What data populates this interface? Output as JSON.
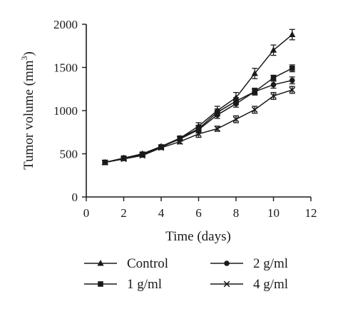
{
  "chart_data": {
    "type": "line",
    "xlabel": "Time (days)",
    "ylabel": {
      "prefix": "Tumor volume (mm",
      "sup": "3",
      "suffix": ")"
    },
    "xlim": [
      0,
      12
    ],
    "ylim": [
      0,
      2000
    ],
    "xticks": [
      0,
      2,
      4,
      6,
      8,
      10,
      12
    ],
    "yticks": [
      0,
      500,
      1000,
      1500,
      2000
    ],
    "grid": false,
    "legend_position": "bottom",
    "x": [
      1,
      2,
      3,
      4,
      5,
      6,
      7,
      8,
      9,
      10,
      11
    ],
    "series": [
      {
        "name": "Control",
        "marker": "triangle",
        "values": [
          400,
          450,
          500,
          585,
          680,
          820,
          1000,
          1150,
          1430,
          1700,
          1880
        ],
        "errors": [
          20,
          20,
          20,
          20,
          25,
          40,
          50,
          60,
          60,
          60,
          60
        ]
      },
      {
        "name": "2 g/ml",
        "marker": "circle",
        "values": [
          400,
          450,
          490,
          580,
          670,
          780,
          950,
          1080,
          1220,
          1300,
          1350
        ],
        "errors": [
          20,
          20,
          20,
          20,
          25,
          40,
          40,
          40,
          40,
          40,
          40
        ]
      },
      {
        "name": "1 g/ml",
        "marker": "square",
        "values": [
          400,
          450,
          495,
          575,
          680,
          790,
          980,
          1110,
          1220,
          1380,
          1490
        ],
        "errors": [
          20,
          20,
          20,
          20,
          25,
          40,
          40,
          40,
          30,
          30,
          40
        ]
      },
      {
        "name": "4 g/ml",
        "marker": "x",
        "values": [
          400,
          440,
          480,
          570,
          640,
          730,
          790,
          900,
          1010,
          1170,
          1240
        ],
        "errors": [
          20,
          20,
          20,
          20,
          25,
          40,
          30,
          40,
          40,
          40,
          40
        ]
      }
    ]
  }
}
